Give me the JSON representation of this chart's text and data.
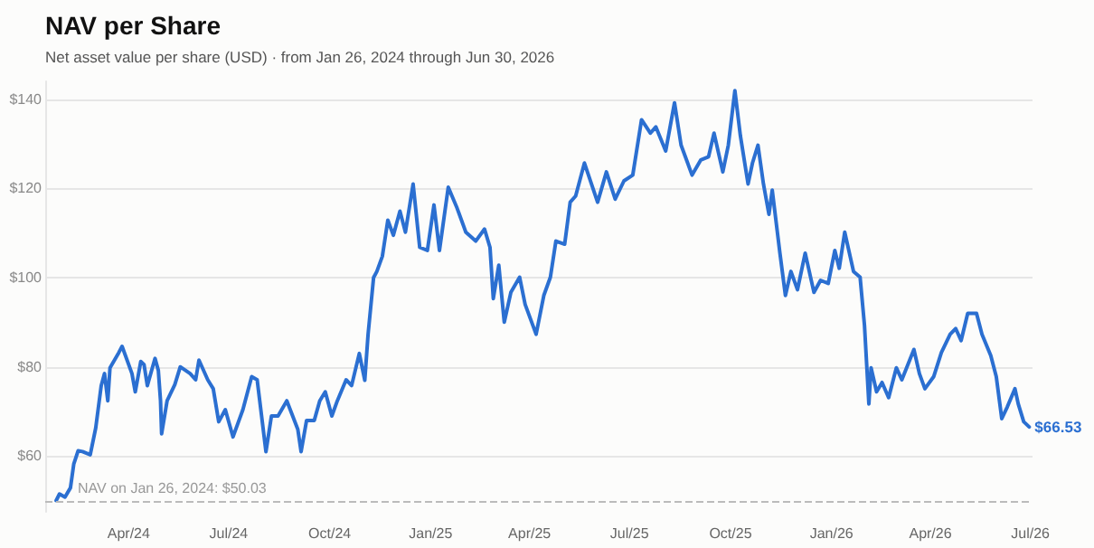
{
  "chart_data": {
    "type": "line",
    "title": "NAV per Share",
    "subtitle": "Net asset value per share (USD) · from Jan 26, 2024 through Jun 30, 2026",
    "x": [
      "2024-01-26",
      "2024-01-29",
      "2024-02-03",
      "2024-02-08",
      "2024-02-11",
      "2024-02-15",
      "2024-02-19",
      "2024-02-26",
      "2024-03-02",
      "2024-03-07",
      "2024-03-10",
      "2024-03-13",
      "2024-03-15",
      "2024-03-23",
      "2024-03-26",
      "2024-04-04",
      "2024-04-07",
      "2024-04-12",
      "2024-04-15",
      "2024-04-18",
      "2024-04-25",
      "2024-04-28",
      "2024-04-30",
      "2024-05-01",
      "2024-05-06",
      "2024-05-13",
      "2024-05-18",
      "2024-05-27",
      "2024-06-01",
      "2024-06-04",
      "2024-06-12",
      "2024-06-17",
      "2024-06-22",
      "2024-06-28",
      "2024-07-05",
      "2024-07-14",
      "2024-07-22",
      "2024-07-27",
      "2024-08-04",
      "2024-08-09",
      "2024-08-15",
      "2024-08-23",
      "2024-09-02",
      "2024-09-05",
      "2024-09-10",
      "2024-09-17",
      "2024-09-22",
      "2024-09-27",
      "2024-10-03",
      "2024-10-08",
      "2024-10-16",
      "2024-10-21",
      "2024-10-28",
      "2024-11-02",
      "2024-11-05",
      "2024-11-10",
      "2024-11-13",
      "2024-11-18",
      "2024-11-23",
      "2024-11-28",
      "2024-12-04",
      "2024-12-09",
      "2024-12-16",
      "2024-12-22",
      "2024-12-29",
      "2025-01-04",
      "2025-01-09",
      "2025-01-17",
      "2025-01-25",
      "2025-02-02",
      "2025-02-11",
      "2025-02-19",
      "2025-02-24",
      "2025-02-27",
      "2025-03-04",
      "2025-03-09",
      "2025-03-15",
      "2025-03-23",
      "2025-03-28",
      "2025-04-07",
      "2025-04-14",
      "2025-04-20",
      "2025-04-25",
      "2025-05-03",
      "2025-05-08",
      "2025-05-13",
      "2025-05-21",
      "2025-06-02",
      "2025-06-10",
      "2025-06-18",
      "2025-06-26",
      "2025-07-04",
      "2025-07-12",
      "2025-07-20",
      "2025-07-25",
      "2025-08-03",
      "2025-08-11",
      "2025-08-17",
      "2025-08-27",
      "2025-09-04",
      "2025-09-11",
      "2025-09-16",
      "2025-09-24",
      "2025-09-29",
      "2025-10-05",
      "2025-10-10",
      "2025-10-17",
      "2025-10-21",
      "2025-10-26",
      "2025-10-31",
      "2025-11-05",
      "2025-11-08",
      "2025-11-15",
      "2025-11-20",
      "2025-11-25",
      "2025-12-01",
      "2025-12-08",
      "2025-12-16",
      "2025-12-22",
      "2025-12-29",
      "2026-01-04",
      "2026-01-08",
      "2026-01-13",
      "2026-01-21",
      "2026-01-27",
      "2026-01-31",
      "2026-02-04",
      "2026-02-06",
      "2026-02-11",
      "2026-02-16",
      "2026-02-22",
      "2026-03-01",
      "2026-03-06",
      "2026-03-17",
      "2026-03-22",
      "2026-03-27",
      "2026-04-04",
      "2026-04-11",
      "2026-04-19",
      "2026-04-24",
      "2026-04-29",
      "2026-05-05",
      "2026-05-13",
      "2026-05-18",
      "2026-05-26",
      "2026-05-31",
      "2026-06-05",
      "2026-06-10",
      "2026-06-17",
      "2026-06-20",
      "2026-06-25",
      "2026-06-30"
    ],
    "series": [
      {
        "color": "#2b6fd1",
        "values": [
          50.03,
          51.5,
          50.8,
          52.9,
          58.2,
          61.2,
          61,
          60.3,
          66.3,
          75.8,
          78.5,
          72.4,
          79.8,
          83.2,
          84.6,
          78.5,
          74.4,
          81.2,
          80.5,
          75.8,
          81.9,
          79.2,
          72.4,
          65,
          72.4,
          76,
          80,
          78.5,
          77.1,
          81.5,
          77.1,
          75.1,
          67.7,
          70.4,
          64.3,
          70.4,
          77.8,
          77.1,
          61,
          69,
          69,
          72.4,
          66,
          61,
          68,
          68,
          72.4,
          74.4,
          69,
          72.4,
          77.1,
          75.8,
          83,
          77,
          87.3,
          100,
          101.4,
          104.8,
          112.9,
          109.5,
          114.9,
          110.2,
          121,
          106.8,
          106.1,
          116.3,
          106.1,
          120.3,
          115.6,
          110.2,
          108.2,
          110.9,
          106.8,
          95.3,
          102.8,
          90,
          96.7,
          100.1,
          94,
          87.3,
          96,
          100.1,
          108.2,
          107.5,
          116.9,
          118.3,
          125.7,
          116.9,
          123.7,
          117.6,
          121.7,
          123,
          135.4,
          132.4,
          133.8,
          128.4,
          139.2,
          129.7,
          123,
          126.4,
          127.1,
          132.4,
          123.7,
          129.7,
          141.9,
          131.8,
          121,
          125.7,
          129.7,
          121,
          114.2,
          119.6,
          105.5,
          96,
          101.4,
          97.3,
          105.5,
          96.7,
          99.4,
          98.7,
          106.1,
          102.1,
          110.2,
          101.4,
          100.1,
          89.3,
          71.7,
          79.8,
          74.4,
          76.5,
          73.1,
          79.8,
          77.1,
          83.9,
          78.5,
          75.1,
          77.8,
          83.2,
          87.3,
          88.6,
          85.9,
          92,
          92,
          87.3,
          82.5,
          77.8,
          68.4,
          71,
          75.1,
          71.7,
          67.7,
          66.53
        ],
        "value_labels": [
          null,
          null,
          null,
          null,
          null,
          null,
          null,
          null,
          null,
          null,
          null,
          null,
          null,
          null,
          null,
          null,
          null,
          null,
          null,
          null,
          null,
          null,
          null,
          null,
          null,
          null,
          null,
          null,
          null,
          null,
          null,
          null,
          null,
          null,
          null,
          null,
          null,
          null,
          null,
          null,
          null,
          null,
          null,
          null,
          null,
          null,
          null,
          null,
          null,
          null,
          null,
          null,
          null,
          null,
          null,
          null,
          null,
          null,
          null,
          null,
          null,
          null,
          null,
          null,
          null,
          null,
          null,
          null,
          null,
          null,
          null,
          null,
          null,
          null,
          null,
          null,
          null,
          null,
          null,
          null,
          null,
          null,
          null,
          null,
          null,
          null,
          null,
          null,
          null,
          null,
          null,
          null,
          null,
          null,
          null,
          null,
          null,
          null,
          null,
          null,
          null,
          null,
          null,
          null,
          null,
          null,
          null,
          null,
          null,
          null,
          null,
          null,
          null,
          null,
          null,
          null,
          null,
          null,
          null,
          null,
          null,
          null,
          null,
          null,
          null,
          null,
          null,
          null,
          null,
          null,
          null,
          null,
          null,
          null,
          null,
          null,
          null,
          null,
          null,
          null,
          null,
          null,
          null,
          null,
          null,
          null,
          null,
          null,
          null,
          null,
          null,
          "$66.53"
        ]
      }
    ],
    "xlim": [
      "2024-01-16",
      "2026-07-03"
    ],
    "xticks": [
      {
        "value": "2024-04-01",
        "label": "Apr/24"
      },
      {
        "value": "2024-07-01",
        "label": "Jul/24"
      },
      {
        "value": "2024-10-01",
        "label": "Oct/24"
      },
      {
        "value": "2025-01-01",
        "label": "Jan/25"
      },
      {
        "value": "2025-04-01",
        "label": "Apr/25"
      },
      {
        "value": "2025-07-01",
        "label": "Jul/25"
      },
      {
        "value": "2025-10-01",
        "label": "Oct/25"
      },
      {
        "value": "2026-01-01",
        "label": "Jan/26"
      },
      {
        "value": "2026-04-01",
        "label": "Apr/26"
      },
      {
        "value": "2026-07-01",
        "label": "Jul/26"
      }
    ],
    "ylim": [
      47.5,
      144
    ],
    "yticks": [
      {
        "value": 60,
        "label": "$60"
      },
      {
        "value": 80,
        "label": "$80"
      },
      {
        "value": 100,
        "label": "$100"
      },
      {
        "value": 120,
        "label": "$120"
      },
      {
        "value": 140,
        "label": "$140"
      }
    ],
    "ref_lines": [
      {
        "axis": "y",
        "value": 50.03,
        "label": "NAV on Jan 26, 2024: $50.03",
        "color": "#bbbbbb",
        "line_style": "dashed"
      }
    ],
    "grid": "y",
    "marker": "none",
    "line_style": "solid"
  }
}
